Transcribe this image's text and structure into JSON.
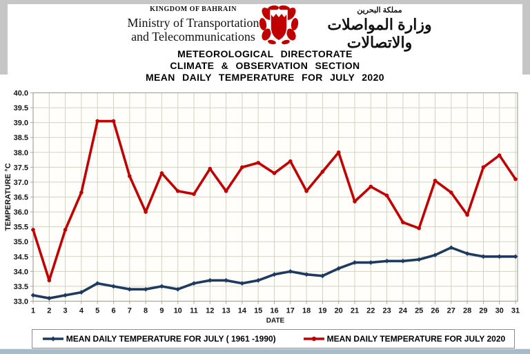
{
  "header": {
    "kingdom": "KINGDOM OF BAHRAIN",
    "ministry_line1": "Ministry of Transportation",
    "ministry_line2": "and Telecommunications",
    "arabic_kingdom": "مملكة البحرين",
    "arabic_ministry": "وزارة المواصلات والاتصالات",
    "emblem": "bahrain-coat-of-arms"
  },
  "titles": {
    "line1": "METEOROLOGICAL DIRECTORATE",
    "line2": "CLIMATE & OBSERVATION SECTION",
    "line3": "MEAN DAILY TEMPERATURE FOR JULY 2020"
  },
  "chart_data": {
    "type": "line",
    "x": [
      1,
      2,
      3,
      4,
      5,
      6,
      7,
      8,
      9,
      10,
      11,
      12,
      13,
      14,
      15,
      16,
      17,
      18,
      19,
      20,
      21,
      22,
      23,
      24,
      25,
      26,
      27,
      28,
      29,
      30,
      31
    ],
    "xtick_labels": [
      "1",
      "2",
      "3",
      "4",
      "5",
      "6",
      "7",
      "8",
      "9",
      "10",
      "11",
      "12",
      "13",
      "14",
      "15",
      "16",
      "17",
      "18",
      "19",
      "20",
      "21",
      "22",
      "23",
      "24",
      "25",
      "26",
      "27",
      "28",
      "29",
      "30",
      "31"
    ],
    "ytick_labels": [
      "33.0",
      "33.5",
      "34.0",
      "34.5",
      "35.0",
      "35.5",
      "36.0",
      "36.5",
      "37.0",
      "37.5",
      "38.0",
      "38.5",
      "39.0",
      "39.5",
      "40.0"
    ],
    "series": [
      {
        "name": "MEAN DAILY TEMPERATURE FOR JULY ( 1961 -1990)",
        "color": "#1e3a5f",
        "marker": "diamond",
        "values": [
          33.2,
          33.1,
          33.2,
          33.3,
          33.6,
          33.5,
          33.4,
          33.4,
          33.5,
          33.4,
          33.6,
          33.7,
          33.7,
          33.6,
          33.7,
          33.9,
          34.0,
          33.9,
          33.85,
          34.1,
          34.3,
          34.3,
          34.35,
          34.35,
          34.4,
          34.55,
          34.8,
          34.6,
          34.5,
          34.5,
          34.5
        ]
      },
      {
        "name": "MEAN DAILY TEMPERATURE FOR JULY 2020",
        "color": "#c00000",
        "marker": "circle",
        "values": [
          35.4,
          33.7,
          35.4,
          36.65,
          39.05,
          39.05,
          37.2,
          36.0,
          37.3,
          36.7,
          36.6,
          37.45,
          36.7,
          37.5,
          37.65,
          37.3,
          37.7,
          36.7,
          37.35,
          38.0,
          36.35,
          36.85,
          36.55,
          35.65,
          35.45,
          37.05,
          36.65,
          35.9,
          37.5,
          37.9,
          37.1
        ]
      }
    ],
    "xlabel": "DATE",
    "ylabel": "TEMPERATURE °C",
    "ylim": [
      33.0,
      40.0
    ],
    "ytick_step": 0.5,
    "grid": true,
    "legend_position": "bottom",
    "colors": {
      "grid": "#d2d2c2",
      "plot_border": "#a6a69a",
      "axis_text": "#141414",
      "frame_gray": "#c6c6c6",
      "bottom_bar": "#a8bbcb"
    }
  }
}
